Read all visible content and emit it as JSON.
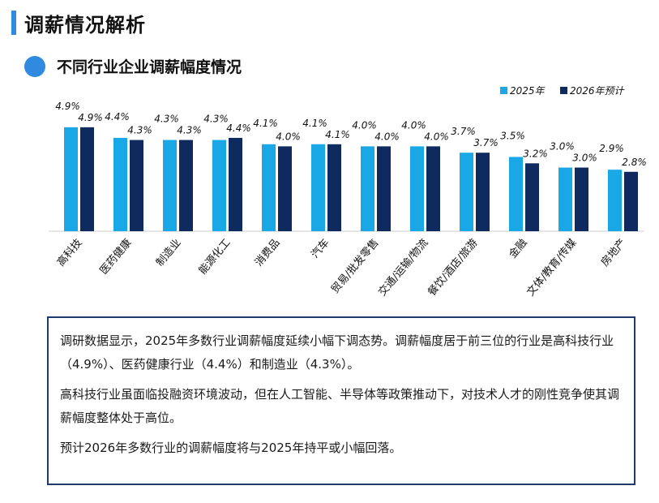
{
  "page": {
    "title": "调薪情况解析"
  },
  "section": {
    "title": "不同行业企业调薪幅度情况"
  },
  "chart_data": {
    "type": "bar",
    "title": "不同行业企业调薪幅度情况",
    "categories": [
      "高科技",
      "医药健康",
      "制造业",
      "能源化工",
      "消费品",
      "汽车",
      "贸易/批发零售",
      "交通/运输/物流",
      "餐饮/酒店/旅游",
      "金融",
      "文体/教育/传媒",
      "房地产"
    ],
    "series": [
      {
        "name": "2025年",
        "color": "#1aa7e6",
        "values": [
          4.9,
          4.4,
          4.3,
          4.3,
          4.1,
          4.1,
          4.0,
          4.0,
          3.7,
          3.5,
          3.0,
          2.9
        ],
        "labels": [
          "4.9%",
          "4.4%",
          "4.3%",
          "4.3%",
          "4.1%",
          "4.1%",
          "4.0%",
          "4.0%",
          "3.7%",
          "3.5%",
          "3.0%",
          "2.9%"
        ]
      },
      {
        "name": "2026年预计",
        "color": "#0e2a5e",
        "values": [
          4.9,
          4.3,
          4.3,
          4.4,
          4.0,
          4.1,
          4.0,
          4.0,
          3.7,
          3.2,
          3.0,
          2.8
        ],
        "labels": [
          "4.9%",
          "4.3%",
          "4.3%",
          "4.4%",
          "4.0%",
          "4.1%",
          "4.0%",
          "4.0%",
          "3.7%",
          "3.2%",
          "3.0%",
          "2.8%"
        ]
      }
    ],
    "ylim": [
      0,
      6.5
    ],
    "legend": "top-right",
    "grid": false,
    "xlabel": "",
    "ylabel": ""
  },
  "summary": {
    "p1": "调研数据显示，2025年多数行业调薪幅度延续小幅下调态势。调薪幅度居于前三位的行业是高科技行业（4.9%）、医药健康行业（4.4%）和制造业（4.3%）。",
    "p2": "高科技行业虽面临投融资环境波动，但在人工智能、半导体等政策推动下，对技术人才的刚性竞争使其调薪幅度整体处于高位。",
    "p3": "预计2026年多数行业的调薪幅度将与2025年持平或小幅回落。"
  }
}
